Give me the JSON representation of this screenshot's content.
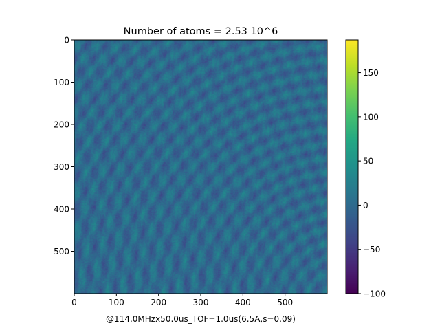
{
  "chart_data": {
    "type": "heatmap",
    "title": "Number of atoms = 2.53 10^6",
    "xlabel": "@114.0MHzx50.0us_TOF=1.0us(6.5A,s=0.09)",
    "ylabel": "",
    "image_size": [
      600,
      600
    ],
    "xlim": [
      0,
      600
    ],
    "ylim": [
      600,
      0
    ],
    "x_ticks": [
      0,
      100,
      200,
      300,
      400,
      500
    ],
    "y_ticks": [
      0,
      100,
      200,
      300,
      400,
      500
    ],
    "colormap": "viridis",
    "colorbar": {
      "vmin": -100,
      "vmax": 187,
      "ticks": [
        -100,
        -50,
        0,
        50,
        100,
        150
      ]
    },
    "typical_background_value": 0,
    "pattern": "interference fringes: periodic diagonal stripes plus concentric arcs centered near the lower-right corner",
    "grid": false,
    "legend": "none"
  }
}
